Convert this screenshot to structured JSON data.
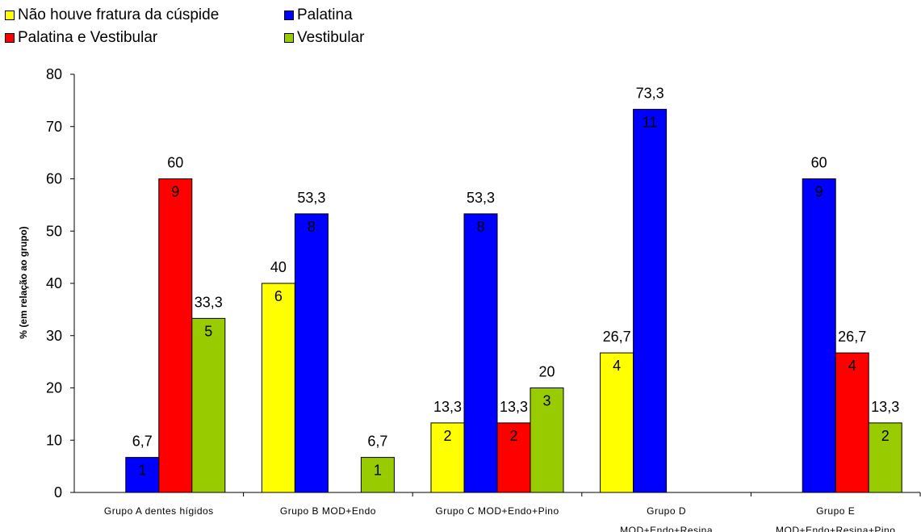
{
  "chart_data": {
    "type": "bar",
    "categories": [
      [
        "Grupo A dentes hígidos"
      ],
      [
        "Grupo B MOD+Endo"
      ],
      [
        "Grupo C MOD+Endo+Pino"
      ],
      [
        "Grupo D",
        "MOD+Endo+Resina"
      ],
      [
        "Grupo E",
        "MOD+Endo+Resina+Pino"
      ]
    ],
    "ylabel": "% (em relação ao grupo)",
    "ylim": [
      0,
      80
    ],
    "yticks": [
      0,
      10,
      20,
      30,
      40,
      50,
      60,
      70,
      80
    ],
    "grid": false,
    "legend_position": "top-left",
    "series": [
      {
        "name": "Não houve fratura da cúspide",
        "color": "#ffff00",
        "values": [
          null,
          40,
          13.3,
          26.7,
          null
        ],
        "value_labels": [
          "",
          "40",
          "13,3",
          "26,7",
          ""
        ],
        "counts": [
          "",
          "6",
          "2",
          "4",
          ""
        ]
      },
      {
        "name": "Palatina",
        "color": "#0000ff",
        "values": [
          6.7,
          53.3,
          53.3,
          73.3,
          60
        ],
        "value_labels": [
          "6,7",
          "53,3",
          "53,3",
          "73,3",
          "60"
        ],
        "counts": [
          "1",
          "8",
          "8",
          "11",
          "9"
        ]
      },
      {
        "name": "Palatina e Vestibular",
        "color": "#ff0000",
        "values": [
          60,
          null,
          13.3,
          null,
          26.7
        ],
        "value_labels": [
          "60",
          "",
          "13,3",
          "",
          "26,7"
        ],
        "counts": [
          "9",
          "",
          "2",
          "",
          "4"
        ]
      },
      {
        "name": "Vestibular",
        "color": "#99cc00",
        "values": [
          33.3,
          6.7,
          20,
          null,
          13.3
        ],
        "value_labels": [
          "33,3",
          "6,7",
          "20",
          "",
          "13,3"
        ],
        "counts": [
          "5",
          "1",
          "3",
          "",
          "2"
        ]
      }
    ]
  }
}
